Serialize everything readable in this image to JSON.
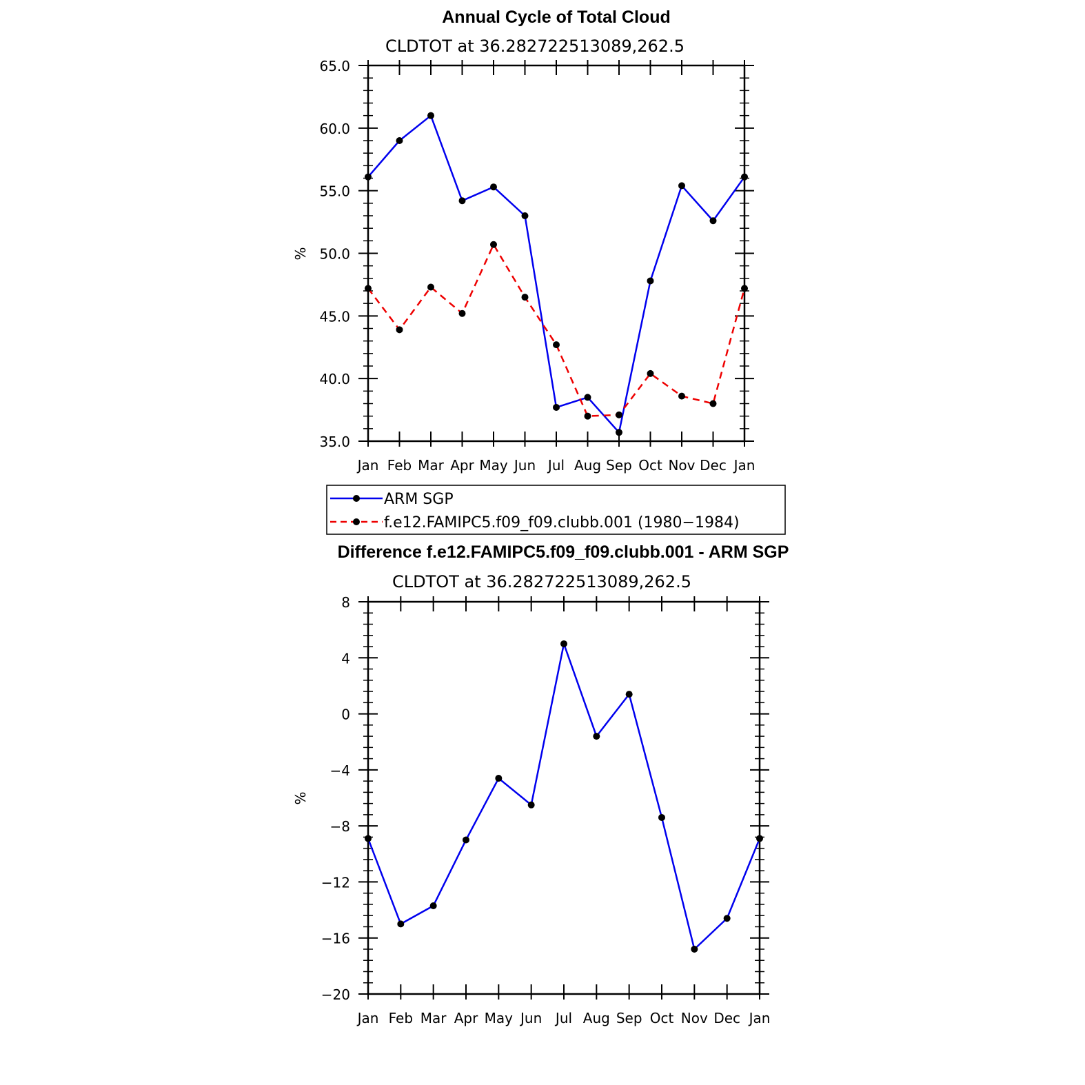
{
  "chart_data": [
    {
      "type": "line",
      "title": "Annual Cycle of Total Cloud",
      "subtitle": "CLDTOT at 36.282722513089,262.5",
      "ylabel": "%",
      "xlabel": "",
      "ylim": [
        35,
        65
      ],
      "yticks": [
        "35.0",
        "40.0",
        "45.0",
        "50.0",
        "55.0",
        "60.0",
        "65.0"
      ],
      "ytick_values": [
        35,
        40,
        45,
        50,
        55,
        60,
        65
      ],
      "categories": [
        "Jan",
        "Feb",
        "Mar",
        "Apr",
        "May",
        "Jun",
        "Jul",
        "Aug",
        "Sep",
        "Oct",
        "Nov",
        "Dec",
        "Jan"
      ],
      "series": [
        {
          "name": "ARM SGP",
          "color": "#0000ee",
          "dash": "solid",
          "values": [
            56.1,
            59.0,
            61.0,
            54.2,
            55.3,
            53.0,
            37.7,
            38.5,
            35.7,
            47.8,
            55.4,
            52.6,
            56.1
          ]
        },
        {
          "name": "f.e12.FAMIPC5.f09_f09.clubb.001 (1980−1984)",
          "color": "#ee0000",
          "dash": "dashed",
          "values": [
            47.2,
            43.9,
            47.3,
            45.2,
            50.7,
            46.5,
            42.7,
            37.0,
            37.1,
            40.4,
            38.6,
            38.0,
            47.2
          ]
        }
      ],
      "legend": "below"
    },
    {
      "type": "line",
      "title": "Difference f.e12.FAMIPC5.f09_f09.clubb.001 - ARM SGP",
      "subtitle": "CLDTOT at 36.282722513089,262.5",
      "ylabel": "%",
      "xlabel": "",
      "ylim": [
        -20,
        8
      ],
      "yticks": [
        "−20",
        "−16",
        "−12",
        "−8",
        "−4",
        "0",
        "4",
        "8"
      ],
      "ytick_values": [
        -20,
        -16,
        -12,
        -8,
        -4,
        0,
        4,
        8
      ],
      "categories": [
        "Jan",
        "Feb",
        "Mar",
        "Apr",
        "May",
        "Jun",
        "Jul",
        "Aug",
        "Sep",
        "Oct",
        "Nov",
        "Dec",
        "Jan"
      ],
      "series": [
        {
          "name": "Difference",
          "color": "#0000ee",
          "dash": "solid",
          "values": [
            -8.9,
            -15.0,
            -13.7,
            -9.0,
            -4.6,
            -6.5,
            5.0,
            -1.6,
            1.4,
            -7.4,
            -16.8,
            -14.6,
            -8.9
          ]
        }
      ]
    }
  ]
}
